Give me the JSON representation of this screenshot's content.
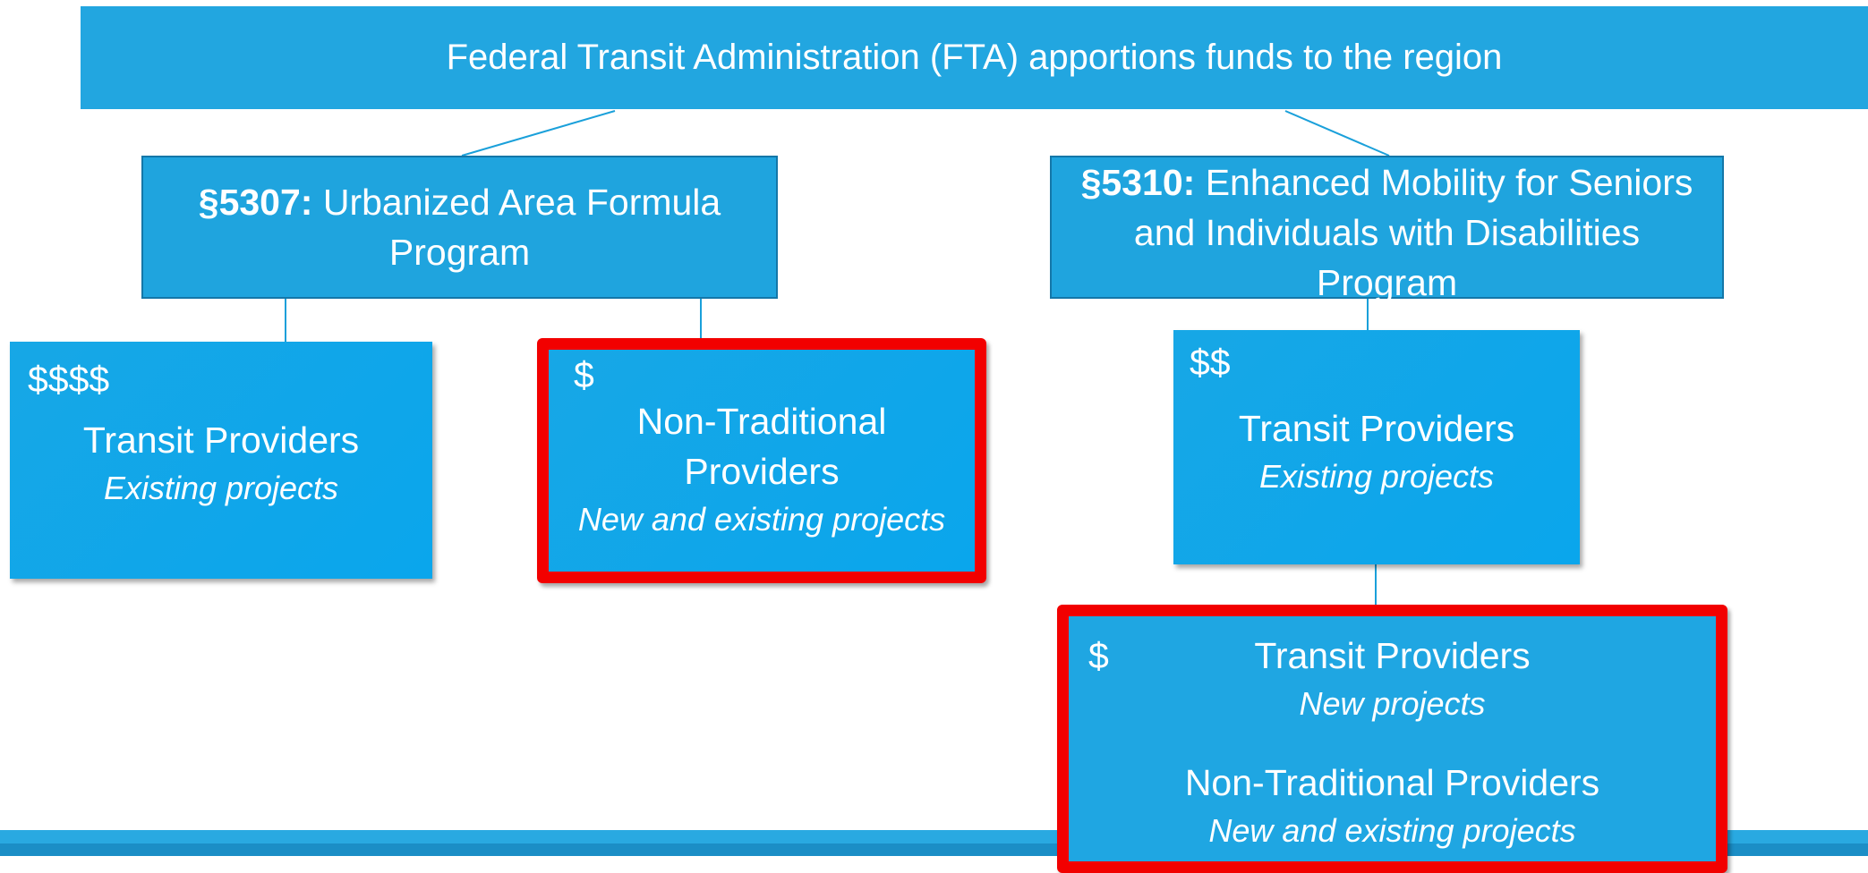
{
  "banner": {
    "text": "Federal Transit Administration (FTA) apportions funds to the region"
  },
  "programs": [
    {
      "code": "§5307:",
      "name": "Urbanized Area Formula Program"
    },
    {
      "code": "§5310:",
      "name": "Enhanced Mobility for Seniors and Individuals with Disabilities Program"
    }
  ],
  "boxes": [
    {
      "amount": "$$$$",
      "provider": "Transit Providers",
      "note": "Existing projects"
    },
    {
      "amount": "$",
      "provider": "Non-Traditional Providers",
      "note": "New and existing projects"
    },
    {
      "amount": "$$",
      "provider": "Transit Providers",
      "note": "Existing projects"
    },
    {
      "amount": "$",
      "groups": [
        {
          "provider": "Transit Providers",
          "note": "New projects"
        },
        {
          "provider": "Non-Traditional Providers",
          "note": "New and existing projects"
        }
      ]
    }
  ]
}
